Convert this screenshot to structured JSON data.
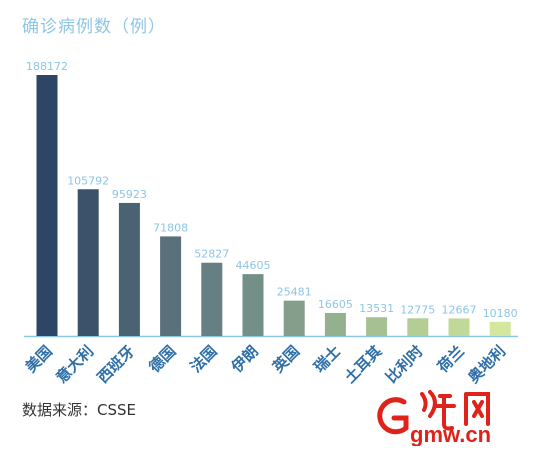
{
  "title": "确诊病例数（例）",
  "source": "数据来源：CSSE",
  "watermark": {
    "logo_text": "gmw.cn"
  },
  "colors": {
    "title": "#8ec6e6",
    "value_label": "#8ec6e6",
    "axis_label": "#2f6fa8",
    "axis_line": "#8ec6e6",
    "logo_red": "#e0231a"
  },
  "chart_data": {
    "type": "bar",
    "title": "确诊病例数（例）",
    "xlabel": "",
    "ylabel": "",
    "categories": [
      "美国",
      "意大利",
      "西班牙",
      "德国",
      "法国",
      "伊朗",
      "英国",
      "瑞士",
      "土耳其",
      "比利时",
      "荷兰",
      "奥地利"
    ],
    "values": [
      188172,
      105792,
      95923,
      71808,
      52827,
      44605,
      25481,
      16605,
      13531,
      12775,
      12667,
      10180
    ],
    "bar_colors": [
      "#2e4565",
      "#3c526a",
      "#4a6272",
      "#5a707a",
      "#657f82",
      "#748e88",
      "#849e8b",
      "#95b08f",
      "#a6c092",
      "#b4cd95",
      "#c2d898",
      "#d3e79e"
    ],
    "ylim": [
      0,
      188172
    ],
    "grid": false,
    "legend": "none"
  }
}
